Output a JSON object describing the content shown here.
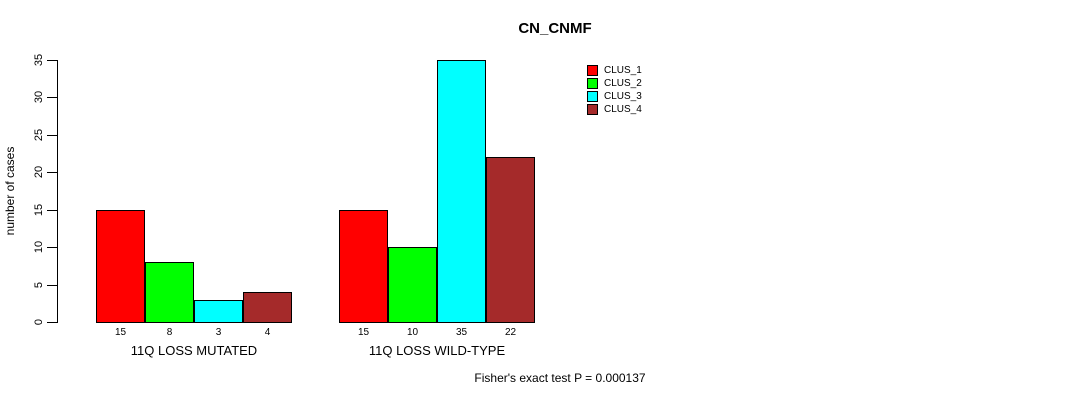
{
  "chart_data": {
    "type": "bar",
    "title": "CN_CNMF",
    "ylabel": "number of cases",
    "xlabel": "",
    "categories": [
      "11Q LOSS MUTATED",
      "11Q LOSS WILD-TYPE"
    ],
    "series": [
      {
        "name": "CLUS_1",
        "color": "#FF0000",
        "values": [
          15,
          15
        ]
      },
      {
        "name": "CLUS_2",
        "color": "#00FF00",
        "values": [
          8,
          10
        ]
      },
      {
        "name": "CLUS_3",
        "color": "#00FFFF",
        "values": [
          3,
          35
        ]
      },
      {
        "name": "CLUS_4",
        "color": "#A52A2A",
        "values": [
          4,
          22
        ]
      }
    ],
    "bar_value_labels": [
      [
        "15",
        "8",
        "3",
        "4"
      ],
      [
        "15",
        "10",
        "35",
        "22"
      ]
    ],
    "yticks": [
      0,
      5,
      10,
      15,
      20,
      25,
      30,
      35
    ],
    "ylim": [
      0,
      35
    ],
    "grid": false,
    "legend_position": "top-right-inside",
    "annotation": "Fisher's exact test P = 0.000137",
    "colors": {
      "bar_border": "#000000",
      "background": "#FFFFFF",
      "text": "#000000"
    }
  }
}
